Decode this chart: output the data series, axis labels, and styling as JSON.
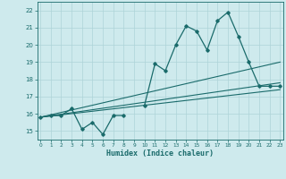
{
  "xlabel": "Humidex (Indice chaleur)",
  "bg_color": "#ceeaed",
  "grid_color": "#aed4d8",
  "line_color": "#1a6b6b",
  "x_ticks": [
    0,
    1,
    2,
    3,
    4,
    5,
    6,
    7,
    8,
    9,
    10,
    11,
    12,
    13,
    14,
    15,
    16,
    17,
    18,
    19,
    20,
    21,
    22,
    23
  ],
  "y_ticks": [
    15,
    16,
    17,
    18,
    19,
    20,
    21,
    22
  ],
  "xlim": [
    -0.3,
    23.3
  ],
  "ylim": [
    14.5,
    22.5
  ],
  "series_main": {
    "x": [
      0,
      1,
      2,
      3,
      4,
      5,
      6,
      7,
      8,
      9,
      10,
      11,
      12,
      13,
      14,
      15,
      16,
      17,
      18,
      19,
      20,
      21,
      22,
      23
    ],
    "y": [
      15.8,
      15.9,
      15.9,
      16.3,
      15.1,
      15.5,
      14.8,
      15.9,
      15.9,
      null,
      16.5,
      18.9,
      18.5,
      20.0,
      21.1,
      20.8,
      19.7,
      21.4,
      21.9,
      20.5,
      19.0,
      17.6,
      17.6,
      17.6
    ]
  },
  "series_lines": [
    {
      "x0": 0,
      "y0": 15.8,
      "x1": 23,
      "y1": 19.0
    },
    {
      "x0": 0,
      "y0": 15.8,
      "x1": 23,
      "y1": 17.8
    },
    {
      "x0": 0,
      "y0": 15.8,
      "x1": 23,
      "y1": 17.4
    }
  ]
}
